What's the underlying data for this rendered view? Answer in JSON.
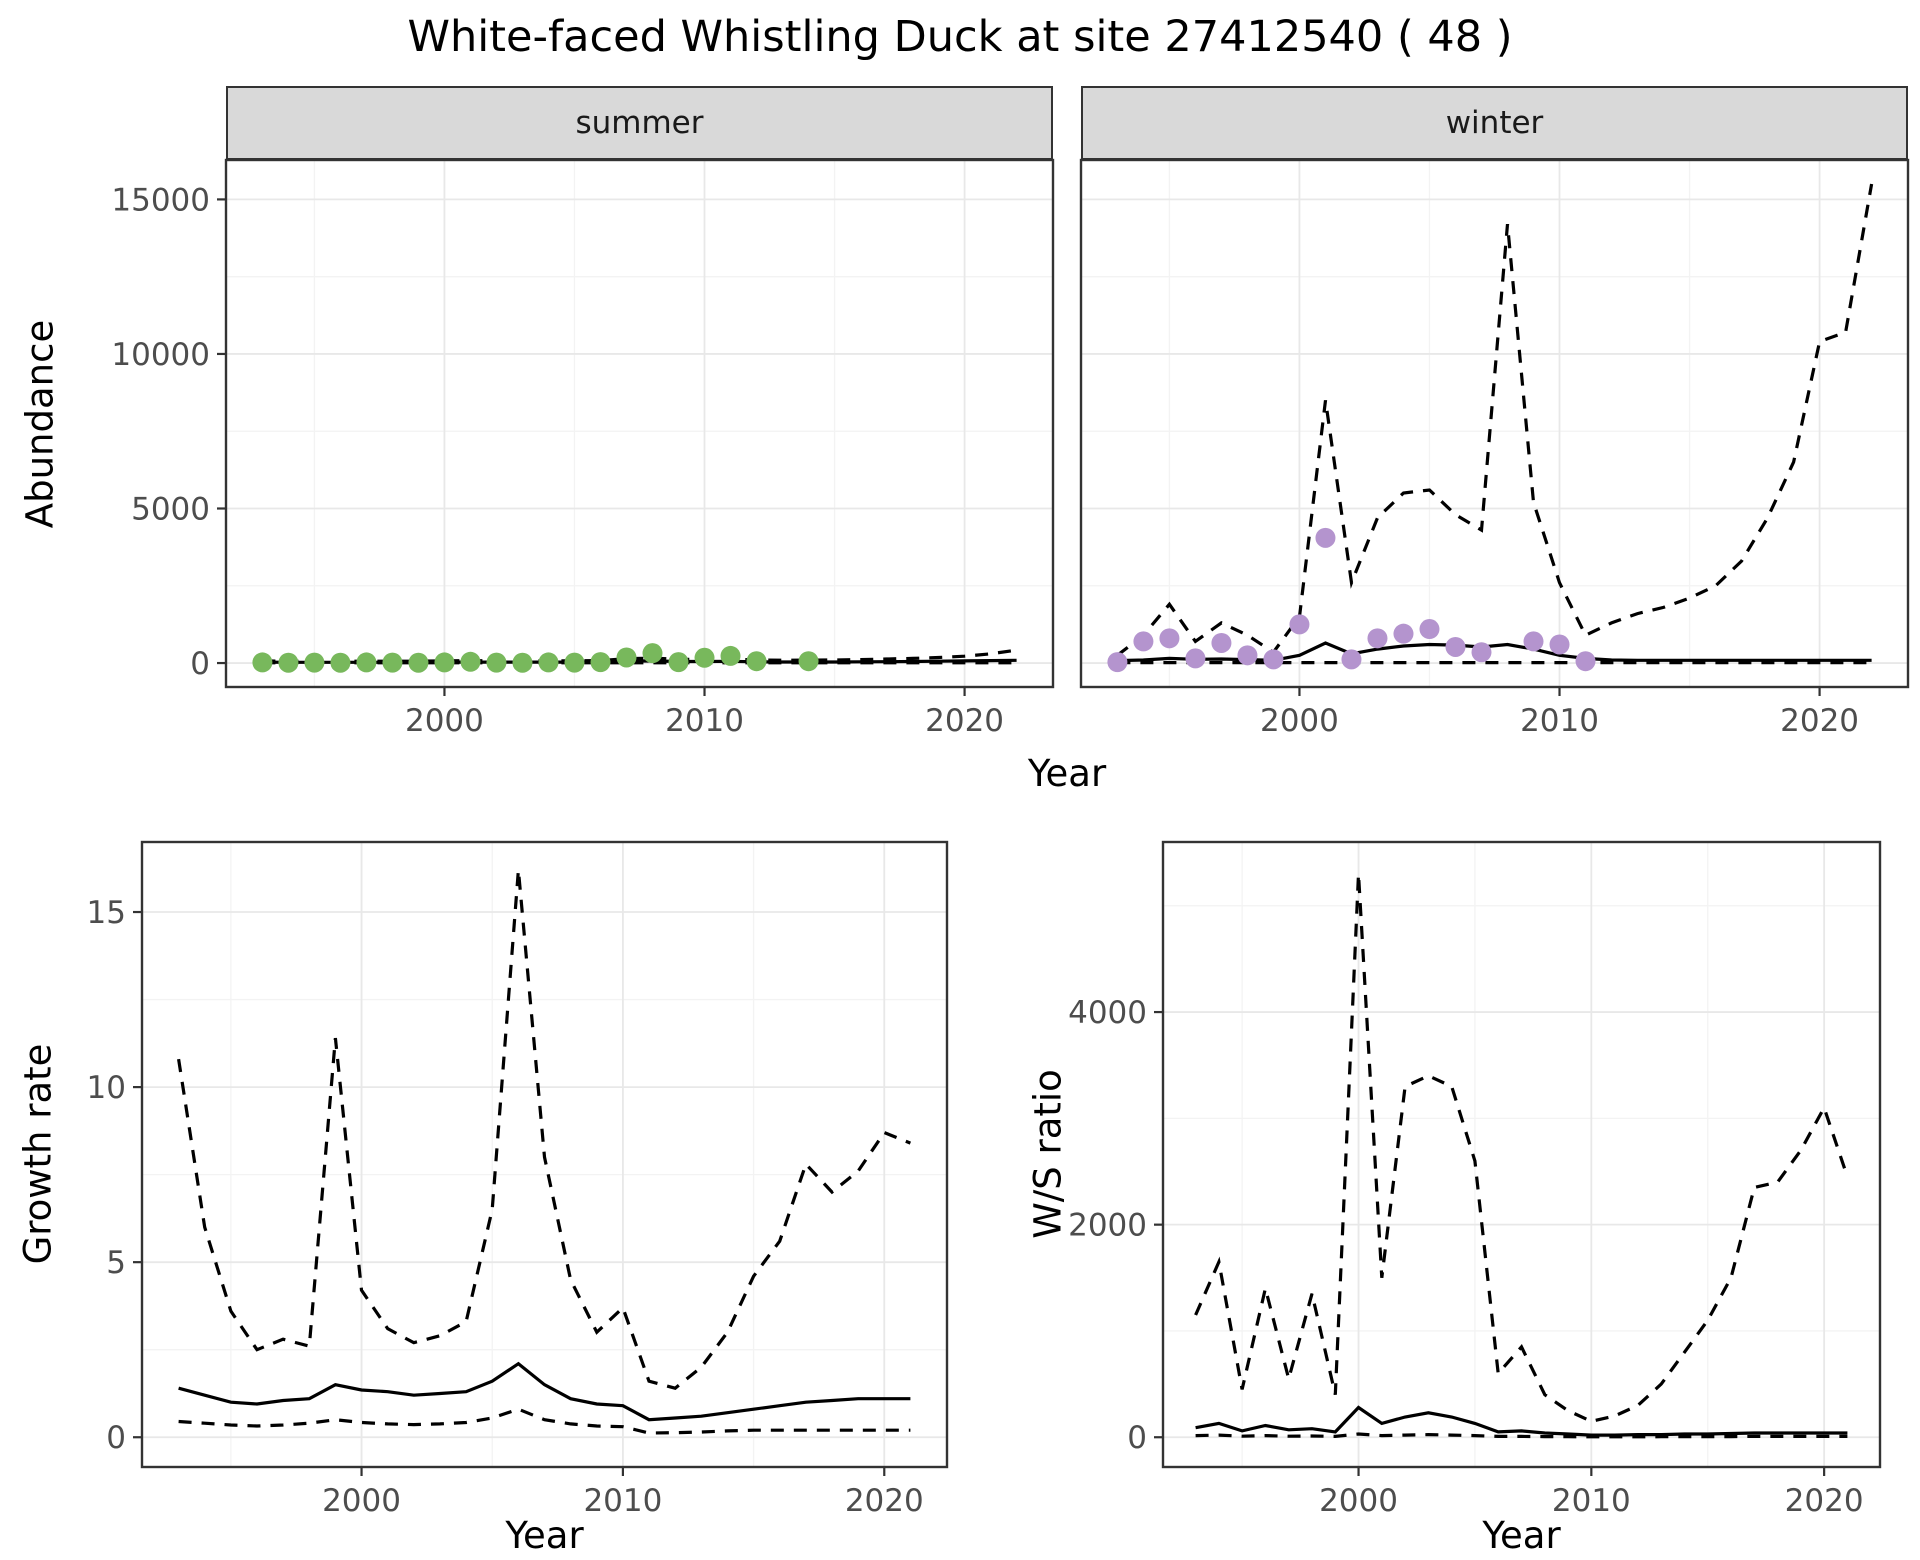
{
  "title": "White-faced Whistling Duck at site 27412540 ( 48 )",
  "colors": {
    "line": "#000000",
    "summer_points": "#78b85c",
    "winter_points": "#b494ce",
    "strip_background": "#d9d9d9",
    "panel_border": "#333333",
    "grid_major": "#e8e8e8",
    "grid_minor": "#f3f3f3",
    "tick_text": "#4d4d4d"
  },
  "chart_data": [
    {
      "id": "summer",
      "type": "line+scatter",
      "facet_label": "summer",
      "xlabel": "Year",
      "ylabel": "Abundance",
      "x_domain": [
        1991.6,
        2023.4
      ],
      "y_domain": [
        -775,
        16275
      ],
      "x_ticks": [
        2000,
        2010,
        2020
      ],
      "y_ticks": [
        0,
        5000,
        10000,
        15000
      ],
      "series": [
        {
          "name": "upper-credible",
          "type": "line",
          "style": "dashed",
          "x_start": 1993,
          "values": [
            70,
            60,
            60,
            60,
            60,
            60,
            60,
            70,
            80,
            70,
            70,
            70,
            70,
            80,
            140,
            160,
            120,
            120,
            130,
            100,
            90,
            95,
            100,
            110,
            130,
            150,
            180,
            220,
            300,
            420
          ]
        },
        {
          "name": "lower-credible",
          "type": "line",
          "style": "dashed",
          "x_start": 1993,
          "values": [
            8,
            8,
            8,
            8,
            8,
            8,
            8,
            8,
            8,
            8,
            8,
            8,
            8,
            8,
            8,
            8,
            8,
            8,
            8,
            8,
            8,
            8,
            8,
            8,
            8,
            8,
            8,
            8,
            8,
            8
          ]
        },
        {
          "name": "median",
          "type": "line",
          "style": "solid",
          "x_start": 1993,
          "values": [
            30,
            25,
            25,
            25,
            25,
            25,
            25,
            30,
            30,
            30,
            30,
            30,
            30,
            35,
            60,
            70,
            50,
            50,
            55,
            40,
            35,
            35,
            35,
            40,
            45,
            50,
            60,
            70,
            80,
            90
          ]
        },
        {
          "name": "observed-counts",
          "type": "points",
          "color": "#78b85c",
          "x": [
            1993,
            1994,
            1995,
            1996,
            1997,
            1998,
            1999,
            2000,
            2001,
            2002,
            2003,
            2004,
            2005,
            2006,
            2007,
            2008,
            2009,
            2010,
            2011,
            2012,
            2014
          ],
          "y": [
            20,
            10,
            15,
            10,
            20,
            15,
            10,
            20,
            40,
            15,
            10,
            20,
            15,
            30,
            180,
            320,
            30,
            170,
            230,
            60,
            60
          ]
        }
      ]
    },
    {
      "id": "winter",
      "type": "line+scatter",
      "facet_label": "winter",
      "xlabel": "Year",
      "ylabel": "Abundance",
      "x_domain": [
        1991.6,
        2023.4
      ],
      "y_domain": [
        -775,
        16275
      ],
      "x_ticks": [
        2000,
        2010,
        2020
      ],
      "y_ticks": [
        0,
        5000,
        10000,
        15000
      ],
      "series": [
        {
          "name": "upper-credible",
          "type": "line",
          "style": "dashed",
          "x_start": 1993,
          "values": [
            250,
            900,
            1900,
            700,
            1300,
            900,
            350,
            1500,
            8500,
            2600,
            4700,
            5500,
            5600,
            4800,
            4300,
            14200,
            5200,
            2600,
            900,
            1300,
            1600,
            1800,
            2100,
            2500,
            3300,
            4700,
            6500,
            10400,
            10700,
            15500
          ]
        },
        {
          "name": "lower-credible",
          "type": "line",
          "style": "dashed",
          "x_start": 1993,
          "values": [
            15,
            15,
            15,
            15,
            15,
            15,
            15,
            15,
            15,
            15,
            15,
            15,
            15,
            15,
            15,
            15,
            15,
            15,
            15,
            15,
            15,
            15,
            15,
            15,
            15,
            15,
            15,
            15,
            15,
            15
          ]
        },
        {
          "name": "median",
          "type": "line",
          "style": "solid",
          "x_start": 1993,
          "values": [
            80,
            100,
            150,
            120,
            130,
            110,
            90,
            250,
            650,
            300,
            450,
            550,
            600,
            580,
            520,
            600,
            450,
            250,
            150,
            100,
            90,
            90,
            90,
            90,
            90,
            90,
            90,
            90,
            90,
            90
          ]
        },
        {
          "name": "observed-counts",
          "type": "points",
          "color": "#b494ce",
          "x": [
            1993,
            1994,
            1995,
            1996,
            1997,
            1998,
            1999,
            2000,
            2001,
            2002,
            2003,
            2004,
            2005,
            2006,
            2007,
            2009,
            2010,
            2011
          ],
          "y": [
            30,
            700,
            800,
            150,
            650,
            250,
            120,
            1250,
            4050,
            120,
            800,
            950,
            1100,
            520,
            350,
            700,
            600,
            60
          ]
        }
      ]
    },
    {
      "id": "growth",
      "type": "line",
      "xlabel": "Year",
      "ylabel": "Growth rate",
      "x_domain": [
        1991.6,
        2022.4
      ],
      "y_domain": [
        -0.85,
        17.0
      ],
      "x_ticks": [
        2000,
        2010,
        2020
      ],
      "y_ticks": [
        0,
        5,
        10,
        15
      ],
      "series": [
        {
          "name": "upper-credible",
          "type": "line",
          "style": "dashed",
          "x_start": 1993,
          "values": [
            10.8,
            6.0,
            3.6,
            2.5,
            2.8,
            2.6,
            11.4,
            4.2,
            3.1,
            2.7,
            2.9,
            3.3,
            6.5,
            16.2,
            8.0,
            4.5,
            3.0,
            3.7,
            1.6,
            1.4,
            2.0,
            3.0,
            4.6,
            5.6,
            7.8,
            7.0,
            7.6,
            8.7,
            8.4
          ]
        },
        {
          "name": "lower-credible",
          "type": "line",
          "style": "dashed",
          "x_start": 1993,
          "values": [
            0.45,
            0.4,
            0.35,
            0.32,
            0.35,
            0.4,
            0.5,
            0.42,
            0.38,
            0.36,
            0.38,
            0.42,
            0.55,
            0.8,
            0.5,
            0.38,
            0.32,
            0.3,
            0.12,
            0.13,
            0.15,
            0.18,
            0.2,
            0.2,
            0.2,
            0.2,
            0.2,
            0.2,
            0.2
          ]
        },
        {
          "name": "median",
          "type": "line",
          "style": "solid",
          "x_start": 1993,
          "values": [
            1.4,
            1.2,
            1.0,
            0.95,
            1.05,
            1.1,
            1.5,
            1.35,
            1.3,
            1.2,
            1.25,
            1.3,
            1.6,
            2.1,
            1.5,
            1.1,
            0.95,
            0.9,
            0.5,
            0.55,
            0.6,
            0.7,
            0.8,
            0.9,
            1.0,
            1.05,
            1.1,
            1.1,
            1.1
          ]
        }
      ]
    },
    {
      "id": "ratio",
      "type": "line",
      "xlabel": "Year",
      "ylabel": "W/S ratio",
      "x_domain": [
        1991.6,
        2022.4
      ],
      "y_domain": [
        -280,
        5600
      ],
      "x_ticks": [
        2000,
        2010,
        2020
      ],
      "y_ticks": [
        0,
        2000,
        4000
      ],
      "series": [
        {
          "name": "upper-credible",
          "type": "line",
          "style": "dashed",
          "x_start": 1993,
          "values": [
            1150,
            1650,
            450,
            1400,
            550,
            1350,
            400,
            5300,
            1500,
            3300,
            3400,
            3300,
            2600,
            600,
            850,
            400,
            250,
            150,
            200,
            300,
            500,
            800,
            1100,
            1500,
            2350,
            2400,
            2700,
            3100,
            2450
          ]
        },
        {
          "name": "lower-credible",
          "type": "line",
          "style": "dashed",
          "x_start": 1993,
          "values": [
            15,
            20,
            10,
            15,
            10,
            12,
            8,
            30,
            15,
            20,
            25,
            20,
            15,
            8,
            8,
            6,
            5,
            4,
            4,
            4,
            5,
            5,
            6,
            6,
            8,
            8,
            8,
            8,
            8
          ]
        },
        {
          "name": "median",
          "type": "line",
          "style": "solid",
          "x_start": 1993,
          "values": [
            90,
            130,
            60,
            110,
            70,
            80,
            50,
            280,
            130,
            190,
            230,
            190,
            130,
            50,
            60,
            40,
            30,
            20,
            20,
            25,
            25,
            30,
            30,
            35,
            40,
            40,
            40,
            40,
            40
          ]
        }
      ]
    }
  ]
}
